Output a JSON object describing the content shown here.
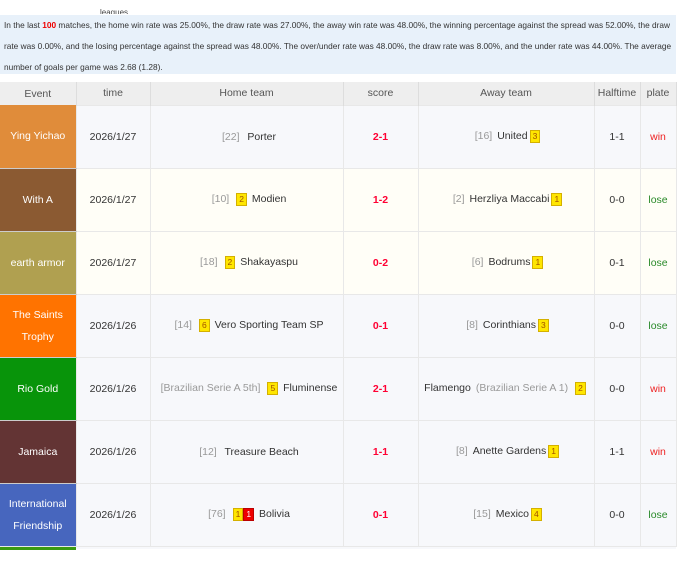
{
  "leagues_label": "leagues",
  "summary": {
    "prefix": "In the last ",
    "count": "100",
    "text": " matches, the home win rate was 25.00%, the draw rate was 27.00%,      the away win rate was 48.00%, the winning percentage against the spread was 52.00%, the draw rate was 0.00%, and the losing percentage against the spread was 48.00%.     The over/under rate was 48.00%, the draw rate was 8.00%, and the under rate was 44.00%.     The average number of goals per game was 2.68 (1.28)."
  },
  "headers": [
    "Event",
    "time",
    "Home team",
    "score",
    "Away team",
    "Halftime",
    "plate"
  ],
  "rows": [
    {
      "event": "Ying Yichao",
      "color": "#e08c3a",
      "time": "2026/1/27",
      "home_rank": "[22]",
      "home_badges": [],
      "home": "Porter",
      "score": "2-1",
      "away_rank": "[16]",
      "away": "United",
      "away_badges": [
        "3"
      ],
      "half": "1-1",
      "plate": "win",
      "alt": false
    },
    {
      "event": "With A",
      "color": "#8b5a32",
      "time": "2026/1/27",
      "home_rank": "[10]",
      "home_badges": [
        "2"
      ],
      "home": "Modien",
      "score": "1-2",
      "away_rank": "[2]",
      "away": "Herzliya Maccabi",
      "away_badges": [
        "1"
      ],
      "half": "0-0",
      "plate": "lose",
      "alt": true
    },
    {
      "event": "earth armor",
      "color": "#b0a050",
      "time": "2026/1/27",
      "home_rank": "[18]",
      "home_badges": [
        "2"
      ],
      "home": "Shakayaspu",
      "score": "0-2",
      "away_rank": "[6]",
      "away": "Bodrums",
      "away_badges": [
        "1"
      ],
      "half": "0-1",
      "plate": "lose",
      "alt": true
    },
    {
      "event": "The Saints Trophy",
      "color": "#ff7300",
      "time": "2026/1/26",
      "home_rank": "[14]",
      "home_badges": [
        "6"
      ],
      "home": "Vero Sporting Team SP",
      "score": "0-1",
      "away_rank": "[8]",
      "away": "Corinthians",
      "away_badges": [
        "3"
      ],
      "half": "0-0",
      "plate": "lose",
      "alt": false
    },
    {
      "event": "Rio Gold",
      "color": "#08940a",
      "time": "2026/1/26",
      "home_rank": "[Brazilian Serie A 5th]",
      "home_badges": [
        "5"
      ],
      "home": "Fluminense",
      "score": "2-1",
      "away_rank": "(Brazilian Serie A 1)",
      "away": "Flamengo",
      "away_rank_after": true,
      "away_badges": [
        "2"
      ],
      "half": "0-0",
      "plate": "win",
      "alt": false
    },
    {
      "event": "Jamaica",
      "color": "#633434",
      "time": "2026/1/26",
      "home_rank": "[12]",
      "home_badges": [],
      "home": "Treasure Beach",
      "score": "1-1",
      "away_rank": "[8]",
      "away": "Anette Gardens",
      "away_badges": [
        "1"
      ],
      "half": "1-1",
      "plate": "win",
      "alt": false
    },
    {
      "event": "International Friendship",
      "color": "#4766be",
      "time": "2026/1/26",
      "home_rank": "[76]",
      "home_badges": [
        "1",
        "1r"
      ],
      "home": "Bolivia",
      "score": "0-1",
      "away_rank": "[15]",
      "away": "Mexico",
      "away_badges": [
        "4"
      ],
      "half": "0-0",
      "plate": "lose",
      "alt": false
    }
  ]
}
